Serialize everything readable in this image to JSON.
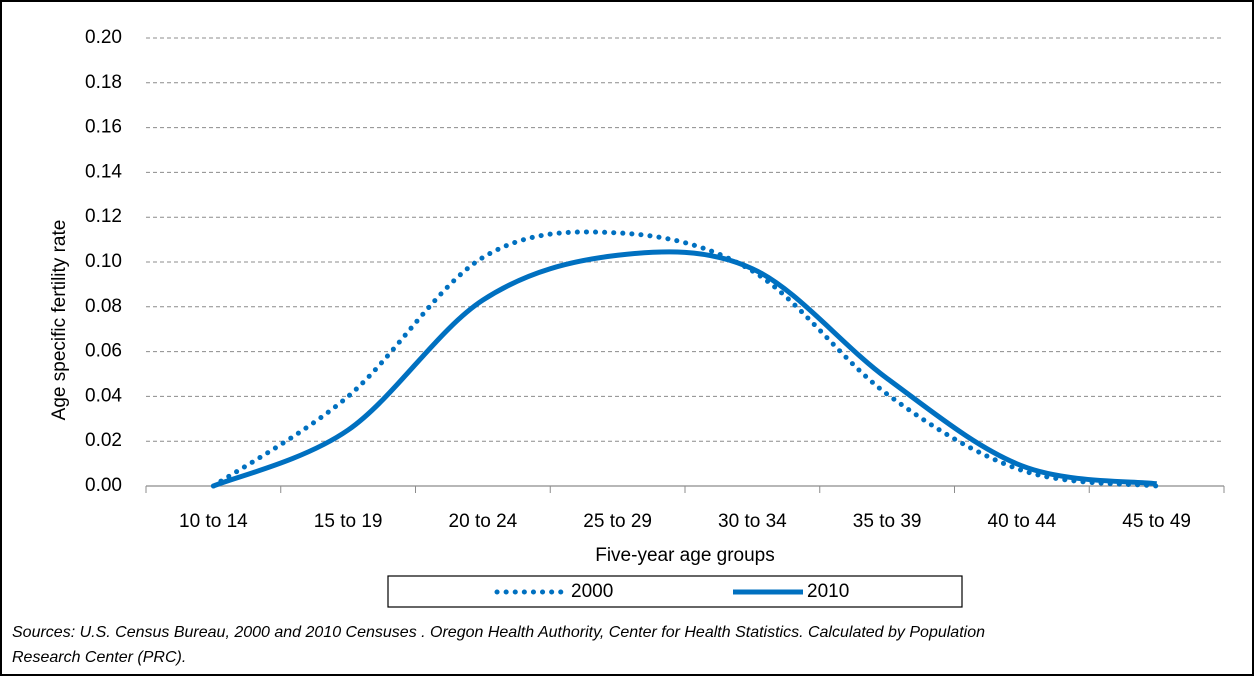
{
  "chart_data": {
    "type": "line",
    "y_label": "Age specific fertility rate",
    "x_label": "Five-year age groups",
    "categories": [
      "10 to 14",
      "15 to 19",
      "20 to 24",
      "25 to 29",
      "30 to 34",
      "35 to 39",
      "40 to 44",
      "45 to 49"
    ],
    "series": [
      {
        "name": "2000",
        "color": "#0070c0",
        "style": "dotted",
        "values": [
          0.0,
          0.04,
          0.102,
          0.113,
          0.096,
          0.041,
          0.007,
          0.0
        ]
      },
      {
        "name": "2010",
        "color": "#0070c0",
        "style": "solid",
        "values": [
          0.0,
          0.025,
          0.083,
          0.103,
          0.097,
          0.048,
          0.009,
          0.001
        ]
      }
    ],
    "ylim": [
      0,
      0.2
    ],
    "yticks": [
      {
        "value": 0,
        "label": "0.00"
      },
      {
        "value": 0.02,
        "label": "0.02"
      },
      {
        "value": 0.04,
        "label": "0.04"
      },
      {
        "value": 0.06,
        "label": "0.06"
      },
      {
        "value": 0.08,
        "label": "0.08"
      },
      {
        "value": 0.1,
        "label": "0.10"
      },
      {
        "value": 0.12,
        "label": "0.12"
      },
      {
        "value": 0.14,
        "label": "0.14"
      },
      {
        "value": 0.16,
        "label": "0.16"
      },
      {
        "value": 0.18,
        "label": "0.18"
      },
      {
        "value": 0.2,
        "label": "0.20"
      }
    ],
    "grid": true,
    "smooth": true,
    "source_lines": [
      "Sources: U.S. Census Bureau, 2000 and 2010 Censuses . Oregon Health Authority, Center for Health Statistics. Calculated by Population",
      "Research Center (PRC)."
    ]
  }
}
